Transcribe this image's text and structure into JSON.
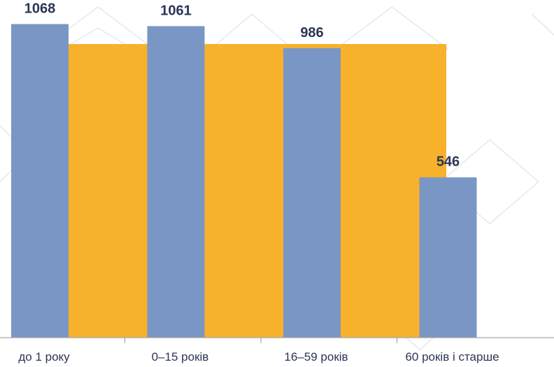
{
  "chart_data": {
    "type": "bar",
    "categories": [
      "до 1 року",
      "0–15 років",
      "16–59 років",
      "60 років і старше"
    ],
    "series": [
      {
        "values": [
          1068,
          1061,
          986,
          546
        ],
        "color": "#7a96c5"
      }
    ],
    "background_band": {
      "value": 1000,
      "color": "#f7b12b"
    },
    "data_labels": [
      "1068",
      "1061",
      "986",
      "546"
    ],
    "title": "",
    "xlabel": "",
    "ylabel": "",
    "ylim": [
      0,
      1150
    ],
    "grid": false,
    "legend": "none",
    "axis_color": "#a6a6a6",
    "label_color": "#2b3556"
  }
}
